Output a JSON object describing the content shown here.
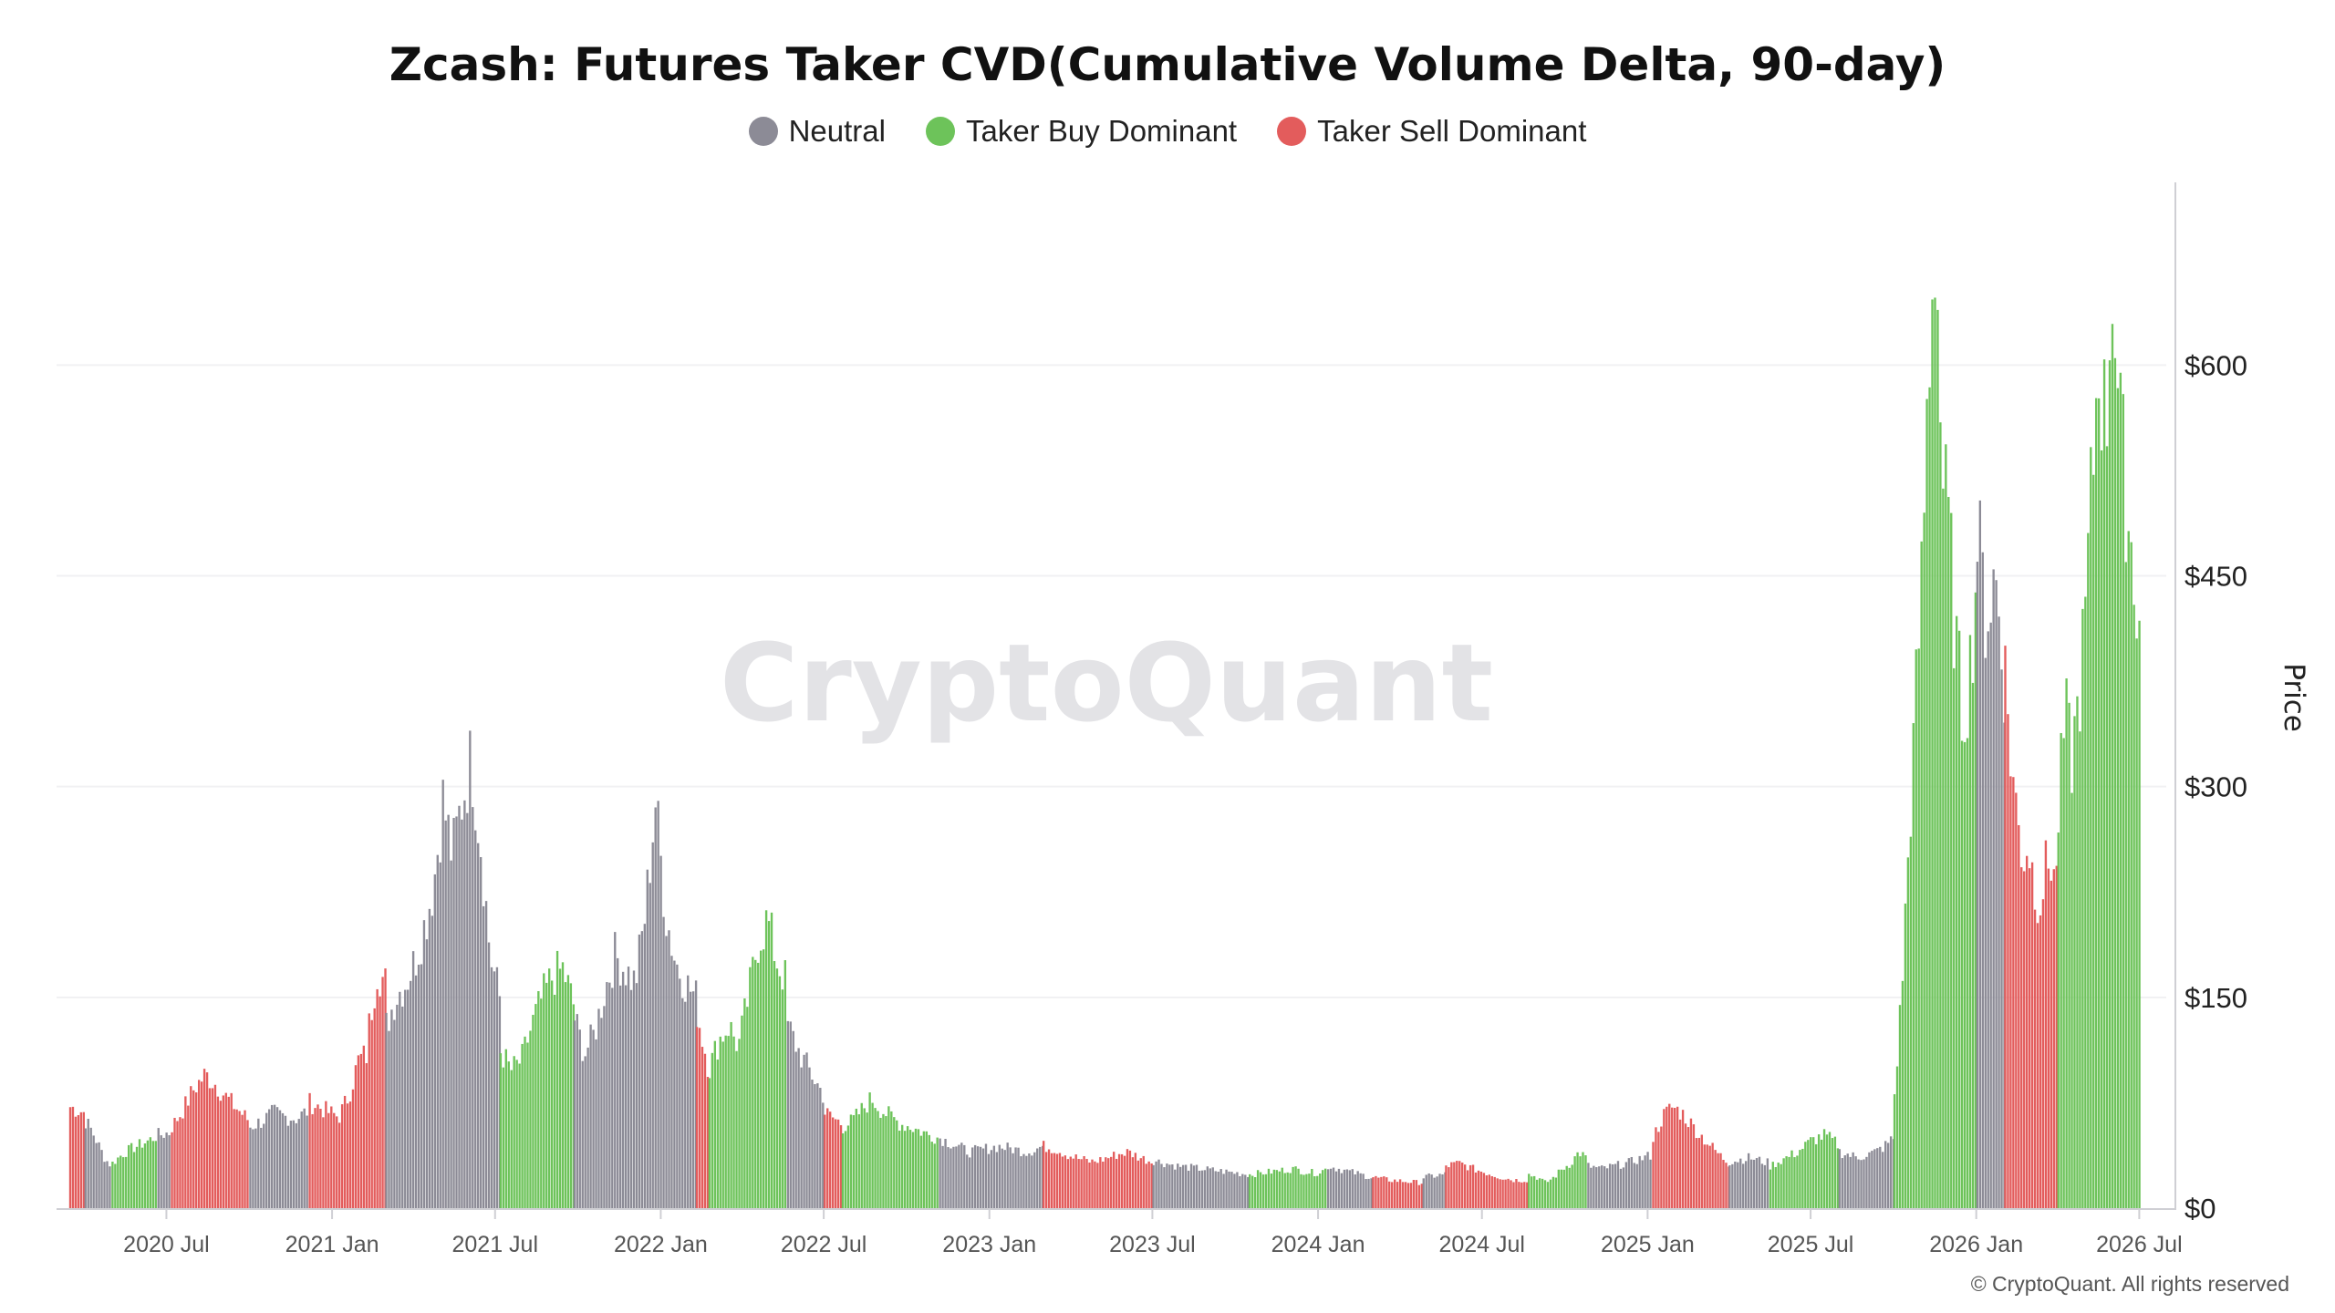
{
  "chart_data": {
    "type": "bar",
    "title": "Zcash: Futures Taker CVD(Cumulative Volume Delta, 90-day)",
    "ylabel": "Price",
    "xlabel": "",
    "ylim": [
      0,
      730
    ],
    "y_ticks": [
      0,
      150,
      300,
      450,
      600
    ],
    "y_tick_labels": [
      "$0",
      "$150",
      "$300",
      "$450",
      "$600"
    ],
    "x_ticks": [
      "2020-07-01",
      "2021-01-01",
      "2021-07-01",
      "2022-01-01",
      "2022-07-01",
      "2023-01-01",
      "2023-07-01",
      "2024-01-01",
      "2024-07-01",
      "2025-01-01",
      "2025-07-01",
      "2026-01-01",
      "2026-07-01"
    ],
    "x_tick_labels": [
      "2020 Jul",
      "2021 Jan",
      "2021 Jul",
      "2022 Jan",
      "2022 Jul",
      "2023 Jan",
      "2023 Jul",
      "2024 Jan",
      "2024 Jul",
      "2025 Jan",
      "2025 Jul",
      "2026 Jan",
      "2026 Jul"
    ],
    "x_range": [
      "2020-03-01",
      "2026-07-31"
    ],
    "grid": "horizontal",
    "legend_placement": "top-center",
    "series": [
      {
        "name": "Neutral",
        "color": "#8c8b96"
      },
      {
        "name": "Taker Buy Dominant",
        "color": "#6dc35a"
      },
      {
        "name": "Taker Sell Dominant",
        "color": "#e35c5c"
      }
    ],
    "segments": [
      {
        "start": "2020-03-15",
        "end": "2020-03-31",
        "series": "Taker Sell Dominant",
        "values": [
          72,
          70,
          68
        ]
      },
      {
        "start": "2020-04-01",
        "end": "2020-04-30",
        "series": "Neutral",
        "values": [
          62,
          55,
          45,
          35,
          30
        ]
      },
      {
        "start": "2020-05-01",
        "end": "2020-06-20",
        "series": "Taker Buy Dominant",
        "values": [
          32,
          38,
          42,
          45,
          48,
          52
        ]
      },
      {
        "start": "2020-06-21",
        "end": "2020-07-05",
        "series": "Neutral",
        "values": [
          52,
          54
        ]
      },
      {
        "start": "2020-07-06",
        "end": "2020-09-30",
        "series": "Taker Sell Dominant",
        "values": [
          58,
          70,
          85,
          95,
          88,
          78,
          70,
          62
        ]
      },
      {
        "start": "2020-10-01",
        "end": "2020-12-05",
        "series": "Neutral",
        "values": [
          58,
          62,
          68,
          65,
          64,
          70
        ]
      },
      {
        "start": "2020-12-06",
        "end": "2021-02-09",
        "series": "Taker Sell Dominant",
        "values": [
          75,
          72,
          68,
          65,
          80,
          105,
          110
        ]
      },
      {
        "start": "2021-02-10",
        "end": "2021-02-28",
        "series": "Taker Sell Dominant",
        "values": [
          130,
          170,
          160
        ]
      },
      {
        "start": "2021-03-01",
        "end": "2021-07-05",
        "series": "Neutral",
        "values": [
          130,
          150,
          160,
          175,
          200,
          230,
          290,
          250,
          290,
          320,
          260,
          180,
          150
        ]
      },
      {
        "start": "2021-07-06",
        "end": "2021-09-25",
        "series": "Taker Buy Dominant",
        "values": [
          112,
          98,
          105,
          130,
          150,
          165,
          170,
          145
        ]
      },
      {
        "start": "2021-09-26",
        "end": "2022-02-08",
        "series": "Neutral",
        "values": [
          135,
          110,
          125,
          155,
          180,
          170,
          160,
          210,
          290,
          210,
          175,
          160,
          150
        ]
      },
      {
        "start": "2022-02-09",
        "end": "2022-02-22",
        "series": "Taker Sell Dominant",
        "values": [
          140,
          100
        ]
      },
      {
        "start": "2022-02-23",
        "end": "2022-05-20",
        "series": "Taker Buy Dominant",
        "values": [
          100,
          120,
          130,
          115,
          150,
          190,
          205,
          175,
          160
        ]
      },
      {
        "start": "2022-05-21",
        "end": "2022-06-30",
        "series": "Neutral",
        "values": [
          130,
          110,
          95,
          80
        ]
      },
      {
        "start": "2022-07-01",
        "end": "2022-07-20",
        "series": "Taker Sell Dominant",
        "values": [
          68,
          60
        ]
      },
      {
        "start": "2022-07-21",
        "end": "2022-11-05",
        "series": "Taker Buy Dominant",
        "values": [
          58,
          62,
          70,
          78,
          70,
          65,
          60,
          58,
          55,
          52,
          50
        ]
      },
      {
        "start": "2022-11-06",
        "end": "2023-02-28",
        "series": "Neutral",
        "values": [
          50,
          45,
          40,
          42,
          44,
          42,
          40,
          44
        ]
      },
      {
        "start": "2023-03-01",
        "end": "2023-06-30",
        "series": "Taker Sell Dominant",
        "values": [
          44,
          42,
          38,
          35,
          33,
          35,
          38,
          40,
          36,
          33
        ]
      },
      {
        "start": "2023-07-01",
        "end": "2023-10-15",
        "series": "Neutral",
        "values": [
          34,
          32,
          30,
          29,
          28,
          27,
          26,
          25,
          24
        ]
      },
      {
        "start": "2023-10-16",
        "end": "2024-01-10",
        "series": "Taker Buy Dominant",
        "values": [
          24,
          25,
          26,
          27,
          28,
          26,
          25,
          28
        ]
      },
      {
        "start": "2024-01-11",
        "end": "2024-02-28",
        "series": "Neutral",
        "values": [
          30,
          28,
          26,
          24,
          22
        ]
      },
      {
        "start": "2024-03-01",
        "end": "2024-04-25",
        "series": "Taker Sell Dominant",
        "values": [
          22,
          20,
          19,
          18
        ]
      },
      {
        "start": "2024-04-26",
        "end": "2024-05-20",
        "series": "Neutral",
        "values": [
          22,
          24
        ]
      },
      {
        "start": "2024-05-21",
        "end": "2024-08-20",
        "series": "Taker Sell Dominant",
        "values": [
          30,
          32,
          28,
          25,
          22,
          20,
          20
        ]
      },
      {
        "start": "2024-08-21",
        "end": "2024-10-25",
        "series": "Taker Buy Dominant",
        "values": [
          24,
          22,
          18,
          22,
          28,
          32,
          40,
          35
        ]
      },
      {
        "start": "2024-10-26",
        "end": "2025-01-05",
        "series": "Neutral",
        "values": [
          30,
          28,
          30,
          32,
          35,
          38
        ]
      },
      {
        "start": "2025-01-06",
        "end": "2025-03-31",
        "series": "Taker Sell Dominant",
        "values": [
          50,
          65,
          72,
          68,
          60,
          52,
          45,
          38,
          32
        ]
      },
      {
        "start": "2025-04-01",
        "end": "2025-05-15",
        "series": "Neutral",
        "values": [
          33,
          36,
          32
        ]
      },
      {
        "start": "2025-05-16",
        "end": "2025-07-31",
        "series": "Taker Buy Dominant",
        "values": [
          30,
          35,
          40,
          48,
          52,
          45
        ]
      },
      {
        "start": "2025-08-01",
        "end": "2025-09-30",
        "series": "Neutral",
        "values": [
          40,
          38,
          36,
          38,
          40,
          44,
          50
        ]
      },
      {
        "start": "2025-10-01",
        "end": "2025-12-31",
        "series": "Taker Buy Dominant",
        "values": [
          80,
          150,
          250,
          350,
          450,
          600,
          700,
          520,
          480,
          400,
          350,
          380,
          450
        ]
      },
      {
        "start": "2026-01-01",
        "end": "2026-01-31",
        "series": "Neutral",
        "values": [
          480,
          420,
          450,
          380
        ]
      },
      {
        "start": "2026-02-01",
        "end": "2026-03-31",
        "series": "Taker Sell Dominant",
        "values": [
          380,
          320,
          280,
          250,
          260,
          230,
          220,
          240,
          250,
          230
        ]
      },
      {
        "start": "2026-04-01",
        "end": "2026-06-30",
        "series": "Taker Buy Dominant",
        "values": [
          280,
          350,
          320,
          360,
          420,
          520,
          610,
          550,
          670,
          560,
          510,
          460,
          420
        ]
      }
    ],
    "watermark": "CryptoQuant"
  },
  "legend": [
    {
      "label": "Neutral",
      "color": "#8c8b96"
    },
    {
      "label": "Taker Buy Dominant",
      "color": "#6dc35a"
    },
    {
      "label": "Taker Sell Dominant",
      "color": "#e35c5c"
    }
  ],
  "copyright": "© CryptoQuant. All rights reserved"
}
